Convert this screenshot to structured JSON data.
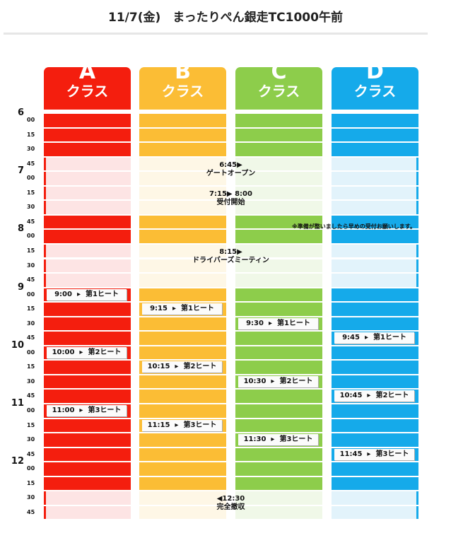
{
  "title": "11/7(金)　まったりぺん銀走TC1000午前",
  "hours": [
    {
      "label": "6",
      "minutes": [
        "00",
        "15",
        "30",
        "45"
      ]
    },
    {
      "label": "7",
      "minutes": [
        "00",
        "15",
        "30",
        "45"
      ]
    },
    {
      "label": "8",
      "minutes": [
        "00",
        "15",
        "30",
        "45"
      ]
    },
    {
      "label": "9",
      "minutes": [
        "00",
        "15",
        "30",
        "45"
      ]
    },
    {
      "label": "10",
      "minutes": [
        "00",
        "15",
        "30",
        "45"
      ]
    },
    {
      "label": "11",
      "minutes": [
        "00",
        "15",
        "30",
        "45"
      ]
    },
    {
      "label": "12",
      "minutes": [
        "00",
        "15",
        "30",
        "45"
      ]
    }
  ],
  "columns": [
    {
      "letter": "A",
      "label": "クラス",
      "color": "#f41e0e",
      "heats": [
        {
          "time": "9:00",
          "arrow": "▸",
          "name": "第1ヒート"
        },
        {
          "time": "10:00",
          "arrow": "▸",
          "name": "第2ヒート"
        },
        {
          "time": "11:00",
          "arrow": "▸",
          "name": "第3ヒート"
        }
      ]
    },
    {
      "letter": "B",
      "label": "クラス",
      "color": "#fbbd35",
      "heats": [
        {
          "time": "9:15",
          "arrow": "▸",
          "name": "第1ヒート"
        },
        {
          "time": "10:15",
          "arrow": "▸",
          "name": "第2ヒート"
        },
        {
          "time": "11:15",
          "arrow": "▸",
          "name": "第3ヒート"
        }
      ]
    },
    {
      "letter": "C",
      "label": "クラス",
      "color": "#8dcd4b",
      "heats": [
        {
          "time": "9:30",
          "arrow": "▸",
          "name": "第1ヒート"
        },
        {
          "time": "10:30",
          "arrow": "▸",
          "name": "第2ヒート"
        },
        {
          "time": "11:30",
          "arrow": "▸",
          "name": "第3ヒート"
        }
      ]
    },
    {
      "letter": "D",
      "label": "クラス",
      "color": "#15aaea",
      "heats": [
        {
          "time": "9:45",
          "arrow": "▸",
          "name": "第1ヒート"
        },
        {
          "time": "10:45",
          "arrow": "▸",
          "name": "第2ヒート"
        },
        {
          "time": "11:45",
          "arrow": "▸",
          "name": "第3ヒート"
        }
      ]
    }
  ],
  "events": [
    {
      "time": "6:45▶",
      "text": "ゲートオープン"
    },
    {
      "time": "7:15▶ 8:00",
      "text": "受付開始"
    },
    {
      "time": "8:15▶",
      "text": "ドライバーズミーティン"
    },
    {
      "time": "◀12:30",
      "text": "完全撤収"
    }
  ],
  "note": "※準備が整いましたら早めの受付お願いします。"
}
